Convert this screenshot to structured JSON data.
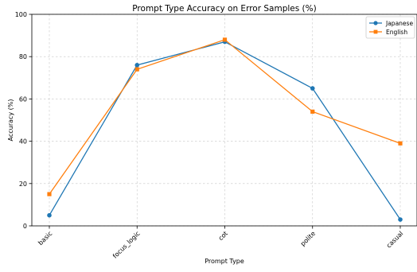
{
  "chart_data": {
    "type": "line",
    "title": "Prompt Type Accuracy on Error Samples (%)",
    "xlabel": "Prompt Type",
    "ylabel": "Accuracy (%)",
    "categories": [
      "basic",
      "focus_logic",
      "cot",
      "polite",
      "casual"
    ],
    "ylim": [
      0,
      100
    ],
    "yticks": [
      0,
      20,
      40,
      60,
      80,
      100
    ],
    "grid": true,
    "legend_position": "top-right",
    "series": [
      {
        "name": "Japanese",
        "color": "#1f77b4",
        "marker": "circle",
        "values": [
          5,
          76,
          87,
          65,
          3
        ]
      },
      {
        "name": "English",
        "color": "#ff7f0e",
        "marker": "square",
        "values": [
          15,
          74,
          88,
          54,
          39
        ]
      }
    ]
  }
}
